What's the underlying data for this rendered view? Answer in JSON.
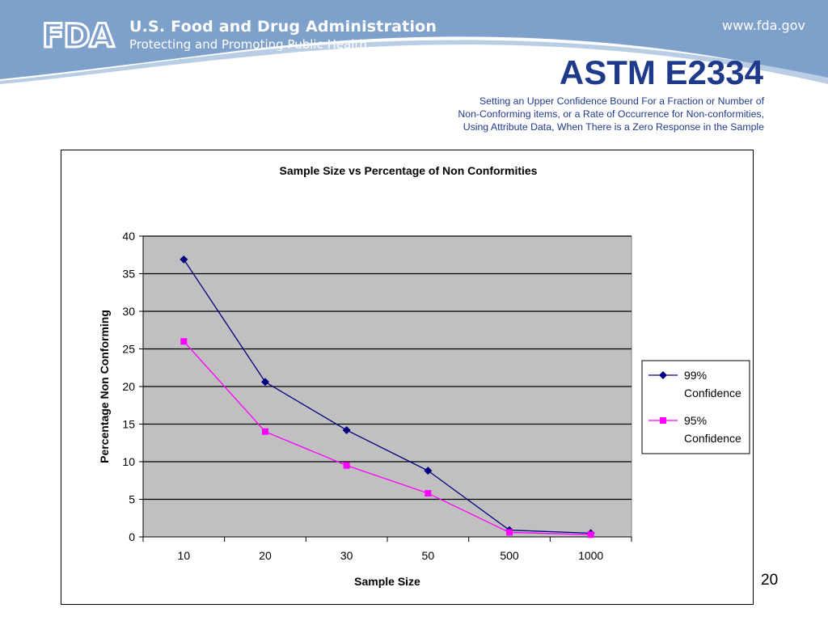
{
  "header": {
    "org_title": "U.S. Food and Drug Administration",
    "org_subtitle": "Protecting and Promoting Public Health",
    "website": "www.fda.gov",
    "logo_text": "FDA"
  },
  "slide": {
    "title": "ASTM E2334",
    "subtitle": "Setting an Upper Confidence Bound For a Fraction or Number of Non-Conforming items, or a Rate of Occurrence for Non-conformities, Using Attribute Data, When There is a Zero Response in the Sample",
    "page_number": "20"
  },
  "colors": {
    "banner_blue": "#7ea1cc",
    "title_blue": "#1f3a8a",
    "plot_area": "#c0c0c0",
    "series_99": "#000080",
    "series_95": "#ff00ff"
  },
  "chart_data": {
    "type": "line",
    "title": "Sample Size vs Percentage of Non Conformities",
    "xlabel": "Sample Size",
    "ylabel": "Percentage Non Conforming",
    "categories": [
      "10",
      "20",
      "30",
      "50",
      "500",
      "1000"
    ],
    "yticks": [
      "0",
      "5",
      "10",
      "15",
      "20",
      "25",
      "30",
      "35",
      "40"
    ],
    "ylim": [
      0,
      40
    ],
    "grid": "horizontal",
    "legend_position": "right",
    "series": [
      {
        "name": "99% Confidence",
        "values": [
          36.9,
          20.6,
          14.2,
          8.8,
          0.9,
          0.5
        ],
        "color": "#000080",
        "marker": "diamond"
      },
      {
        "name": "95% Confidence",
        "values": [
          26.0,
          14.0,
          9.5,
          5.8,
          0.6,
          0.3
        ],
        "color": "#ff00ff",
        "marker": "square"
      }
    ]
  }
}
